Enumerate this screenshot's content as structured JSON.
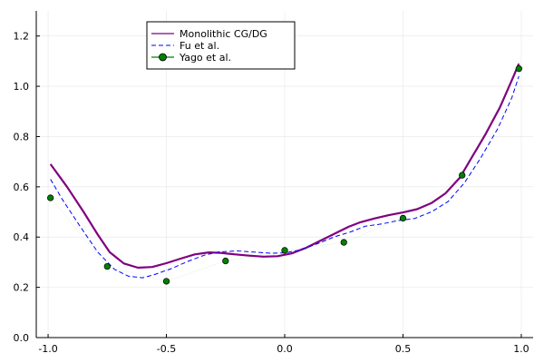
{
  "chart_data": {
    "type": "line",
    "xlim": [
      -1.05,
      1.05
    ],
    "ylim": [
      0.0,
      1.3
    ],
    "x_ticks": [
      -1.0,
      -0.5,
      0.0,
      0.5,
      1.0
    ],
    "x_tick_labels": [
      "-1.0",
      "-0.5",
      "0.0",
      "0.5",
      "1.0"
    ],
    "y_ticks": [
      0.0,
      0.2,
      0.4,
      0.6,
      0.8,
      1.0,
      1.2
    ],
    "y_tick_labels": [
      "0.0",
      "0.2",
      "0.4",
      "0.6",
      "0.8",
      "1.0",
      "1.2"
    ],
    "grid": true,
    "legend_position": "top-center",
    "series": [
      {
        "name": "Monolithic CG/DG",
        "kind": "line",
        "style": "solid",
        "color": "#800080",
        "x": [
          -0.99,
          -0.92,
          -0.85,
          -0.79,
          -0.74,
          -0.68,
          -0.62,
          -0.56,
          -0.5,
          -0.44,
          -0.38,
          -0.32,
          -0.27,
          -0.21,
          -0.15,
          -0.09,
          -0.03,
          0.03,
          0.09,
          0.15,
          0.21,
          0.27,
          0.32,
          0.38,
          0.44,
          0.5,
          0.56,
          0.62,
          0.68,
          0.74,
          0.79,
          0.85,
          0.91,
          0.96,
          0.99
        ],
        "y": [
          0.69,
          0.6,
          0.5,
          0.41,
          0.34,
          0.295,
          0.278,
          0.281,
          0.296,
          0.314,
          0.331,
          0.339,
          0.337,
          0.331,
          0.326,
          0.322,
          0.324,
          0.335,
          0.357,
          0.385,
          0.413,
          0.441,
          0.459,
          0.474,
          0.487,
          0.498,
          0.511,
          0.535,
          0.574,
          0.636,
          0.716,
          0.811,
          0.917,
          1.024,
          1.09
        ]
      },
      {
        "name": "Fu et al.",
        "kind": "line",
        "style": "dashed",
        "color": "#0000ff",
        "x": [
          -0.99,
          -0.94,
          -0.87,
          -0.79,
          -0.72,
          -0.66,
          -0.6,
          -0.55,
          -0.48,
          -0.41,
          -0.34,
          -0.28,
          -0.2,
          -0.13,
          -0.06,
          0.0,
          0.07,
          0.14,
          0.21,
          0.28,
          0.34,
          0.41,
          0.48,
          0.55,
          0.62,
          0.69,
          0.76,
          0.83,
          0.9,
          0.96,
          0.99
        ],
        "y": [
          0.63,
          0.55,
          0.45,
          0.34,
          0.272,
          0.244,
          0.238,
          0.251,
          0.274,
          0.303,
          0.328,
          0.341,
          0.345,
          0.34,
          0.336,
          0.337,
          0.35,
          0.374,
          0.401,
          0.421,
          0.443,
          0.452,
          0.466,
          0.474,
          0.5,
          0.541,
          0.616,
          0.717,
          0.831,
          0.954,
          1.04
        ]
      },
      {
        "name": "Yago et al.",
        "kind": "scatter",
        "color": "#008000",
        "x": [
          -0.99,
          -0.75,
          -0.5,
          -0.25,
          0.0,
          0.25,
          0.5,
          0.75,
          0.99
        ],
        "y": [
          0.556,
          0.283,
          0.224,
          0.305,
          0.347,
          0.379,
          0.475,
          0.646,
          1.07
        ]
      }
    ]
  }
}
